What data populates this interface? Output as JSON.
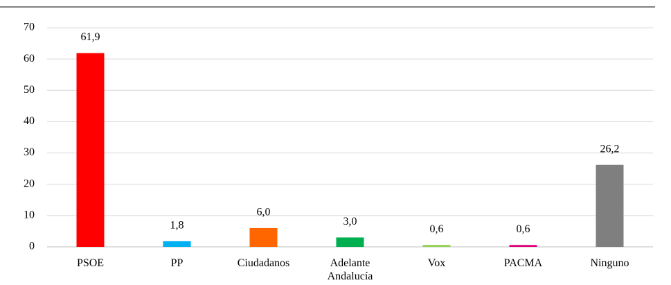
{
  "chart_data": {
    "type": "bar",
    "categories": [
      "PSOE",
      "PP",
      "Ciudadanos",
      "Adelante Andalucía",
      "Vox",
      "PACMA",
      "Ninguno"
    ],
    "values": [
      61.9,
      1.8,
      6.0,
      3.0,
      0.6,
      0.6,
      26.2
    ],
    "value_labels": [
      "61,9",
      "1,8",
      "6,0",
      "3,0",
      "0,6",
      "0,6",
      "26,2"
    ],
    "colors": [
      "#ff0000",
      "#00b0f0",
      "#ff6600",
      "#00b050",
      "#92d050",
      "#e0007a",
      "#7f7f7f"
    ],
    "ylim": [
      0,
      70
    ],
    "yticks": [
      0,
      10,
      20,
      30,
      40,
      50,
      60,
      70
    ],
    "grid": true
  }
}
